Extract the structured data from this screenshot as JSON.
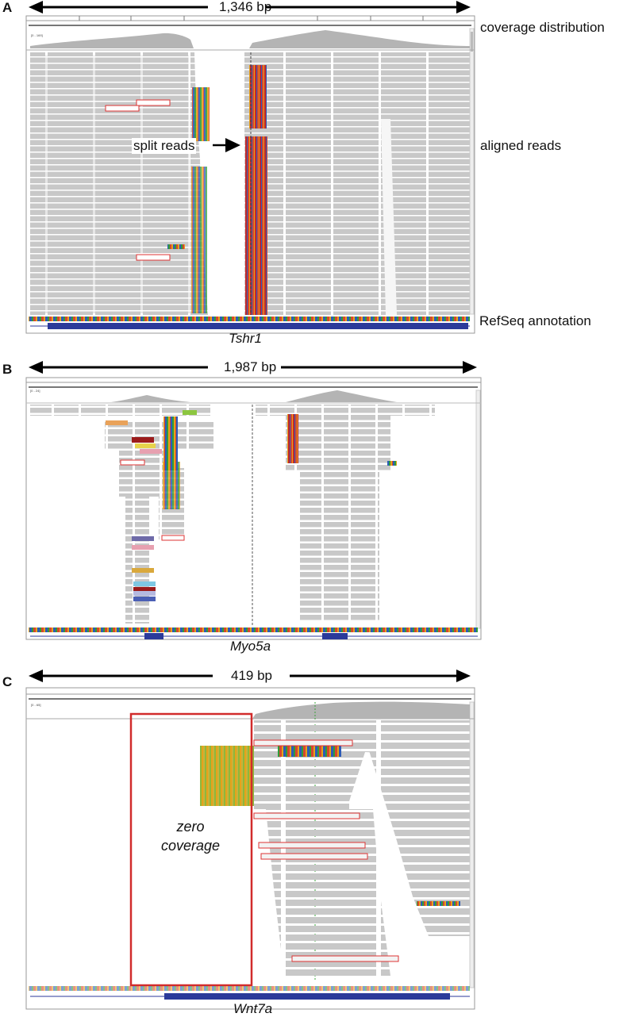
{
  "panels": [
    {
      "letter": "A",
      "span": "1,346 bp",
      "range": "[0 - 169]",
      "gene": "Tshr1",
      "labels": {
        "coverage": "coverage distribution",
        "reads": "aligned reads",
        "annotation": "RefSeq annotation",
        "split": "split reads"
      }
    },
    {
      "letter": "B",
      "span": "1,987 bp",
      "range": "[0 - 24]",
      "gene": "Myo5a"
    },
    {
      "letter": "C",
      "span": "419 bp",
      "range": "[0 - 65]",
      "gene": "Wnt7a",
      "labels": {
        "zero1": "zero",
        "zero2": "coverage"
      }
    }
  ],
  "colors": {
    "read": "#c8c8c8",
    "coverage": "#b4b4b4",
    "gene_track": "#2b3a9a",
    "outline": "#d33",
    "mismatch_red": "#c62828",
    "arrow": "#000000"
  }
}
